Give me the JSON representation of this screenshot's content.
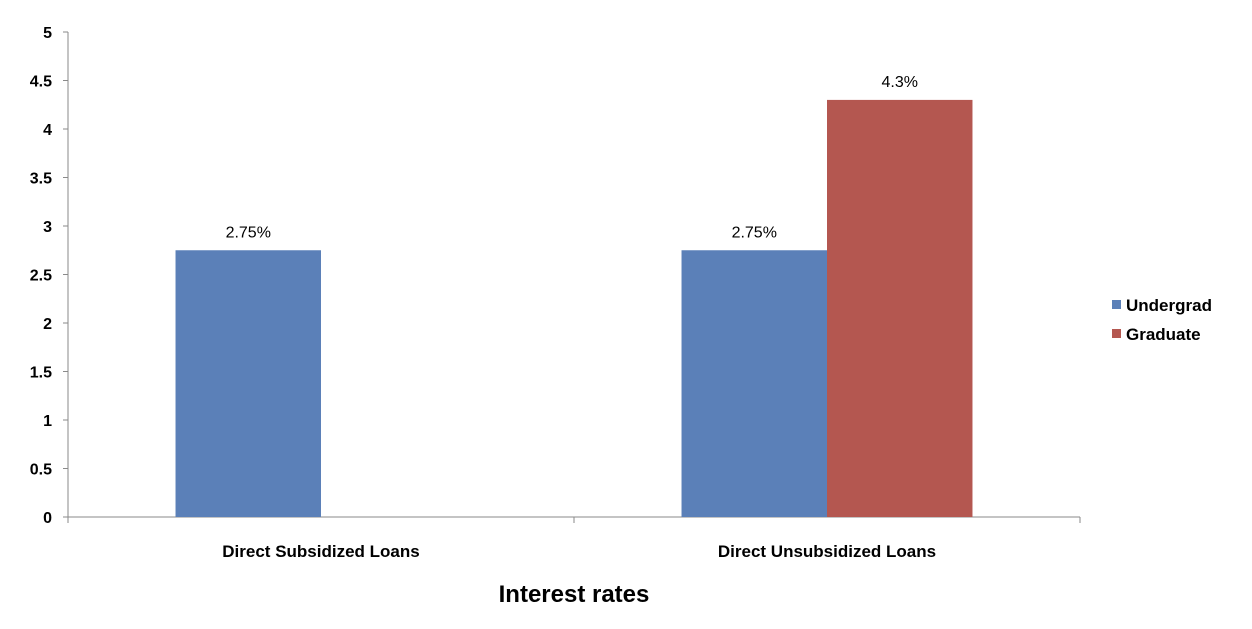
{
  "chart_data": {
    "type": "bar",
    "title": "",
    "xlabel": "Interest rates",
    "ylabel": "",
    "categories": [
      "Direct Subsidized Loans",
      "Direct Unsubsidized Loans"
    ],
    "series": [
      {
        "name": "Undergrad",
        "color": "#5B80B8",
        "values": [
          2.75,
          2.75
        ],
        "labels": [
          "2.75%",
          "2.75%"
        ]
      },
      {
        "name": "Graduate",
        "color": "#B45750",
        "values": [
          null,
          4.3
        ],
        "labels": [
          null,
          "4.3%"
        ]
      }
    ],
    "ylim": [
      0,
      5
    ],
    "yticks": [
      "0",
      "0.5",
      "1",
      "1.5",
      "2",
      "2.5",
      "3",
      "3.5",
      "4",
      "4.5",
      "5"
    ],
    "grid": false,
    "legend_position": "right"
  }
}
